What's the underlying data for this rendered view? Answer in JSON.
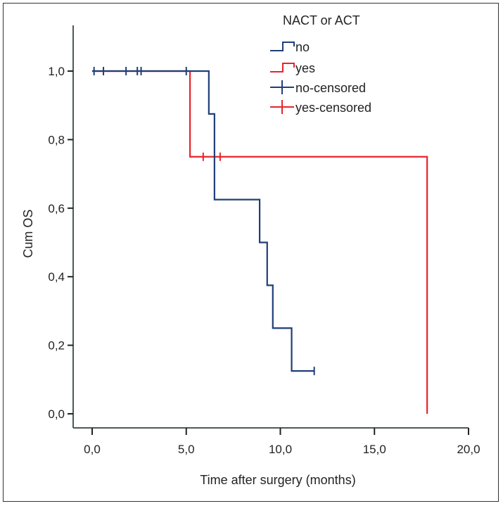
{
  "chart_data": {
    "type": "line",
    "subtype": "kaplan-meier",
    "title": "",
    "xlabel": "Time after surgery (months)",
    "ylabel": "Cum OS",
    "xlim": [
      -1.2,
      21.0
    ],
    "ylim": [
      -0.04,
      1.06
    ],
    "xticks": [
      0,
      5,
      10,
      15,
      20
    ],
    "xtick_labels": [
      "0,0",
      "5,0",
      "10,0",
      "15,0",
      "20,0"
    ],
    "yticks": [
      0,
      0.2,
      0.4,
      0.6,
      0.8,
      1.0
    ],
    "ytick_labels": [
      "0,0",
      "0,2",
      "0,4",
      "0,6",
      "0,8",
      "1,0"
    ],
    "grid": false,
    "legend": {
      "title": "NACT or ACT",
      "placement": "top-right",
      "entries": [
        {
          "label": "no",
          "kind": "step",
          "color": "#1f3f78"
        },
        {
          "label": "yes",
          "kind": "step",
          "color": "#e8242c"
        },
        {
          "label": "no-censored",
          "kind": "censor",
          "color": "#1f3f78"
        },
        {
          "label": "yes-censored",
          "kind": "censor",
          "color": "#e8242c"
        }
      ]
    },
    "series": [
      {
        "name": "yes",
        "color": "#e8242c",
        "steps": [
          [
            0,
            1.0
          ],
          [
            5.2,
            0.75
          ],
          [
            17.8,
            0.0
          ]
        ],
        "end_x": 17.8,
        "censored": [
          [
            5.9,
            0.75
          ],
          [
            6.8,
            0.75
          ]
        ]
      },
      {
        "name": "no",
        "color": "#1f3f78",
        "steps": [
          [
            0,
            1.0
          ],
          [
            6.2,
            0.875
          ],
          [
            6.5,
            0.625
          ],
          [
            8.9,
            0.5
          ],
          [
            9.3,
            0.375
          ],
          [
            9.6,
            0.25
          ],
          [
            10.6,
            0.125
          ]
        ],
        "end_x": 11.8,
        "censored": [
          [
            0.1,
            1.0
          ],
          [
            0.6,
            1.0
          ],
          [
            1.8,
            1.0
          ],
          [
            2.4,
            1.0
          ],
          [
            2.6,
            1.0
          ],
          [
            5.0,
            1.0
          ],
          [
            11.8,
            0.125
          ]
        ]
      }
    ]
  }
}
